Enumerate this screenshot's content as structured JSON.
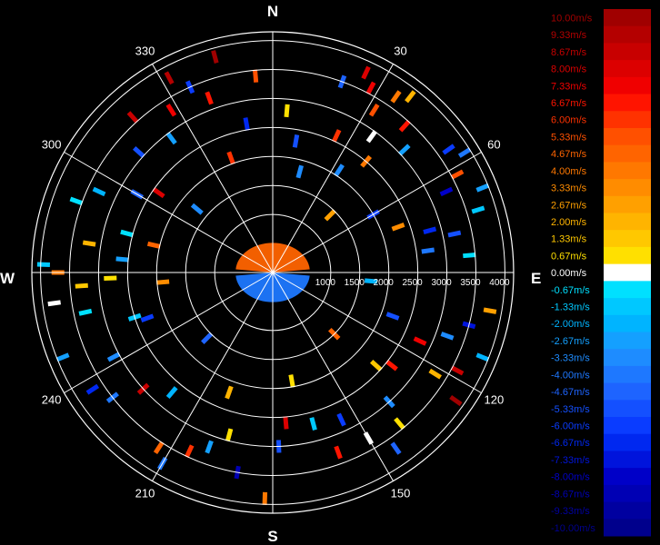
{
  "chart_data": {
    "type": "polar-radial-velocity",
    "compass": {
      "north": "N",
      "east": "E",
      "south": "S",
      "west": "W"
    },
    "angle_ticks": [
      {
        "deg": 30,
        "label": "30"
      },
      {
        "deg": 60,
        "label": "60"
      },
      {
        "deg": 120,
        "label": "120"
      },
      {
        "deg": 150,
        "label": "150"
      },
      {
        "deg": 210,
        "label": "210"
      },
      {
        "deg": 240,
        "label": "240"
      },
      {
        "deg": 300,
        "label": "300"
      },
      {
        "deg": 330,
        "label": "330"
      }
    ],
    "range_ticks": [
      {
        "r": 1000,
        "label": "1000"
      },
      {
        "r": 1500,
        "label": "1500"
      },
      {
        "r": 2000,
        "label": "2000"
      },
      {
        "r": 2500,
        "label": "2500"
      },
      {
        "r": 3000,
        "label": "3000"
      },
      {
        "r": 3500,
        "label": "3500"
      },
      {
        "r": 4000,
        "label": "4000"
      }
    ],
    "range_max": 4150,
    "grid": true,
    "colorbar": {
      "unit": "m/s",
      "levels": [
        {
          "label": "10.00m/s",
          "value": 10.0,
          "color": "#a00000"
        },
        {
          "label": "9.33m/s",
          "value": 9.33,
          "color": "#b40000"
        },
        {
          "label": "8.67m/s",
          "value": 8.67,
          "color": "#c80000"
        },
        {
          "label": "8.00m/s",
          "value": 8.0,
          "color": "#dc0000"
        },
        {
          "label": "7.33m/s",
          "value": 7.33,
          "color": "#f00000"
        },
        {
          "label": "6.67m/s",
          "value": 6.67,
          "color": "#ff1400"
        },
        {
          "label": "6.00m/s",
          "value": 6.0,
          "color": "#ff3200"
        },
        {
          "label": "5.33m/s",
          "value": 5.33,
          "color": "#ff5000"
        },
        {
          "label": "4.67m/s",
          "value": 4.67,
          "color": "#ff6400"
        },
        {
          "label": "4.00m/s",
          "value": 4.0,
          "color": "#ff7800"
        },
        {
          "label": "3.33m/s",
          "value": 3.33,
          "color": "#ff8c00"
        },
        {
          "label": "2.67m/s",
          "value": 2.67,
          "color": "#ffa000"
        },
        {
          "label": "2.00m/s",
          "value": 2.0,
          "color": "#ffb400"
        },
        {
          "label": "1.33m/s",
          "value": 1.33,
          "color": "#ffc800"
        },
        {
          "label": "0.67m/s",
          "value": 0.67,
          "color": "#ffe000"
        },
        {
          "label": "0.00m/s",
          "value": 0.0,
          "color": "#ffffff"
        },
        {
          "label": "-0.67m/s",
          "value": -0.67,
          "color": "#00e0ff"
        },
        {
          "label": "-1.33m/s",
          "value": -1.33,
          "color": "#00c8ff"
        },
        {
          "label": "-2.00m/s",
          "value": -2.0,
          "color": "#00b4ff"
        },
        {
          "label": "-2.67m/s",
          "value": -2.67,
          "color": "#14a0ff"
        },
        {
          "label": "-3.33m/s",
          "value": -3.33,
          "color": "#1e8cff"
        },
        {
          "label": "-4.00m/s",
          "value": -4.0,
          "color": "#1e78ff"
        },
        {
          "label": "-4.67m/s",
          "value": -4.67,
          "color": "#1e64ff"
        },
        {
          "label": "-5.33m/s",
          "value": -5.33,
          "color": "#1450ff"
        },
        {
          "label": "-6.00m/s",
          "value": -6.0,
          "color": "#0a3cff"
        },
        {
          "label": "-6.67m/s",
          "value": -6.67,
          "color": "#0028f0"
        },
        {
          "label": "-7.33m/s",
          "value": -7.33,
          "color": "#0014dc"
        },
        {
          "label": "-8.00m/s",
          "value": -8.0,
          "color": "#0000c8"
        },
        {
          "label": "-8.67m/s",
          "value": -8.67,
          "color": "#0000b4"
        },
        {
          "label": "-9.33m/s",
          "value": -9.33,
          "color": "#0000a0"
        },
        {
          "label": "-10.00m/s",
          "value": -10.0,
          "color": "#00008c"
        }
      ]
    },
    "gates": [
      {
        "az": 5,
        "r": 2800,
        "v": 0.67
      },
      {
        "az": 20,
        "r": 3500,
        "v": -4.67
      },
      {
        "az": 25,
        "r": 3800,
        "v": 8.0
      },
      {
        "az": 28,
        "r": 3600,
        "v": 7.33
      },
      {
        "az": 32,
        "r": 3300,
        "v": 5.33
      },
      {
        "az": 35,
        "r": 3700,
        "v": 4.0
      },
      {
        "az": 38,
        "r": 3850,
        "v": 2.0
      },
      {
        "az": 36,
        "r": 2900,
        "v": 0.0
      },
      {
        "az": 42,
        "r": 3400,
        "v": 6.67
      },
      {
        "az": 47,
        "r": 3100,
        "v": -2.67
      },
      {
        "az": 40,
        "r": 2500,
        "v": 4.0
      },
      {
        "az": 33,
        "r": 2100,
        "v": -3.33
      },
      {
        "az": 25,
        "r": 2600,
        "v": 6.0
      },
      {
        "az": 55,
        "r": 3700,
        "v": -6.0
      },
      {
        "az": 58,
        "r": 3900,
        "v": -4.0
      },
      {
        "az": 62,
        "r": 3600,
        "v": 5.33
      },
      {
        "az": 65,
        "r": 3300,
        "v": -8.0
      },
      {
        "az": 68,
        "r": 3900,
        "v": -2.67
      },
      {
        "az": 73,
        "r": 3700,
        "v": -1.33
      },
      {
        "az": 78,
        "r": 3200,
        "v": -5.33
      },
      {
        "az": 75,
        "r": 2800,
        "v": -6.67
      },
      {
        "az": 70,
        "r": 2300,
        "v": 3.33
      },
      {
        "az": 82,
        "r": 2700,
        "v": -4.0
      },
      {
        "az": 85,
        "r": 3400,
        "v": -0.67
      },
      {
        "az": 100,
        "r": 3800,
        "v": 2.67
      },
      {
        "az": 105,
        "r": 3500,
        "v": -7.33
      },
      {
        "az": 110,
        "r": 3200,
        "v": -3.33
      },
      {
        "az": 112,
        "r": 3900,
        "v": -2.0
      },
      {
        "az": 115,
        "r": 2800,
        "v": 7.33
      },
      {
        "az": 118,
        "r": 3600,
        "v": 8.67
      },
      {
        "az": 122,
        "r": 3300,
        "v": 2.0
      },
      {
        "az": 125,
        "r": 3850,
        "v": 10.0
      },
      {
        "az": 128,
        "r": 2600,
        "v": 6.67
      },
      {
        "az": 132,
        "r": 2400,
        "v": 1.33
      },
      {
        "az": 138,
        "r": 3000,
        "v": -3.33
      },
      {
        "az": 140,
        "r": 3400,
        "v": 0.67
      },
      {
        "az": 145,
        "r": 3700,
        "v": -4.67
      },
      {
        "az": 150,
        "r": 3300,
        "v": 0.0
      },
      {
        "az": 155,
        "r": 2800,
        "v": -6.0
      },
      {
        "az": 160,
        "r": 3300,
        "v": 6.67
      },
      {
        "az": 165,
        "r": 2700,
        "v": -1.33
      },
      {
        "az": 175,
        "r": 2600,
        "v": 8.0
      },
      {
        "az": 178,
        "r": 3000,
        "v": -5.33
      },
      {
        "az": 182,
        "r": 3900,
        "v": 4.0
      },
      {
        "az": 190,
        "r": 3500,
        "v": -8.67
      },
      {
        "az": 195,
        "r": 2900,
        "v": 0.67
      },
      {
        "az": 200,
        "r": 3200,
        "v": -2.67
      },
      {
        "az": 205,
        "r": 3400,
        "v": 6.0
      },
      {
        "az": 210,
        "r": 3800,
        "v": -4.0
      },
      {
        "az": 213,
        "r": 3600,
        "v": 4.67
      },
      {
        "az": 220,
        "r": 2700,
        "v": -2.0
      },
      {
        "az": 228,
        "r": 3000,
        "v": 8.67
      },
      {
        "az": 232,
        "r": 3500,
        "v": -4.0
      },
      {
        "az": 237,
        "r": 3700,
        "v": -6.67
      },
      {
        "az": 242,
        "r": 3100,
        "v": -3.33
      },
      {
        "az": 248,
        "r": 3900,
        "v": -2.67
      },
      {
        "az": 252,
        "r": 2500,
        "v": -1.33
      },
      {
        "az": 258,
        "r": 3300,
        "v": -0.67
      },
      {
        "az": 262,
        "r": 3800,
        "v": 0.0
      },
      {
        "az": 266,
        "r": 3300,
        "v": 1.33
      },
      {
        "az": 268,
        "r": 2800,
        "v": 0.67
      },
      {
        "az": 270,
        "r": 3700,
        "v": 4.0
      },
      {
        "az": 272,
        "r": 3950,
        "v": -1.33
      },
      {
        "az": 275,
        "r": 2600,
        "v": -2.67
      },
      {
        "az": 279,
        "r": 3200,
        "v": 2.0
      },
      {
        "az": 283,
        "r": 2100,
        "v": 4.67
      },
      {
        "az": 290,
        "r": 3600,
        "v": -0.67
      },
      {
        "az": 295,
        "r": 3300,
        "v": -2.0
      },
      {
        "az": 300,
        "r": 2700,
        "v": -4.67
      },
      {
        "az": 305,
        "r": 2400,
        "v": 8.0
      },
      {
        "az": 312,
        "r": 3100,
        "v": -5.33
      },
      {
        "az": 318,
        "r": 3600,
        "v": 8.67
      },
      {
        "az": 323,
        "r": 2900,
        "v": -2.67
      },
      {
        "az": 328,
        "r": 3300,
        "v": 7.33
      },
      {
        "az": 332,
        "r": 3800,
        "v": 9.33
      },
      {
        "az": 336,
        "r": 3500,
        "v": -6.0
      },
      {
        "az": 340,
        "r": 3200,
        "v": 6.67
      },
      {
        "az": 345,
        "r": 3850,
        "v": 10.0
      },
      {
        "az": 350,
        "r": 2600,
        "v": -6.67
      },
      {
        "az": 355,
        "r": 3400,
        "v": 5.33
      },
      {
        "az": 15,
        "r": 1800,
        "v": -3.33
      },
      {
        "az": 45,
        "r": 1400,
        "v": 2.67
      },
      {
        "az": 95,
        "r": 1700,
        "v": -2.0
      },
      {
        "az": 135,
        "r": 1500,
        "v": 4.67
      },
      {
        "az": 170,
        "r": 1900,
        "v": 0.67
      },
      {
        "az": 225,
        "r": 1600,
        "v": -4.67
      },
      {
        "az": 265,
        "r": 1900,
        "v": 3.33
      },
      {
        "az": 310,
        "r": 1700,
        "v": -3.33
      },
      {
        "az": 340,
        "r": 2100,
        "v": 6.0
      },
      {
        "az": 60,
        "r": 2000,
        "v": -6.0
      },
      {
        "az": 110,
        "r": 2200,
        "v": -5.33
      },
      {
        "az": 200,
        "r": 2200,
        "v": 2.0
      },
      {
        "az": 250,
        "r": 2300,
        "v": -6.0
      },
      {
        "az": 285,
        "r": 2600,
        "v": -0.67
      },
      {
        "az": 10,
        "r": 2300,
        "v": -5.33
      }
    ],
    "near_field": [
      {
        "az_from": 275,
        "az_to": 445,
        "r_from": 0,
        "r_to": 640,
        "v": 4.67
      },
      {
        "az_from": 95,
        "az_to": 265,
        "r_from": 0,
        "r_to": 640,
        "v": -4.0
      }
    ]
  }
}
